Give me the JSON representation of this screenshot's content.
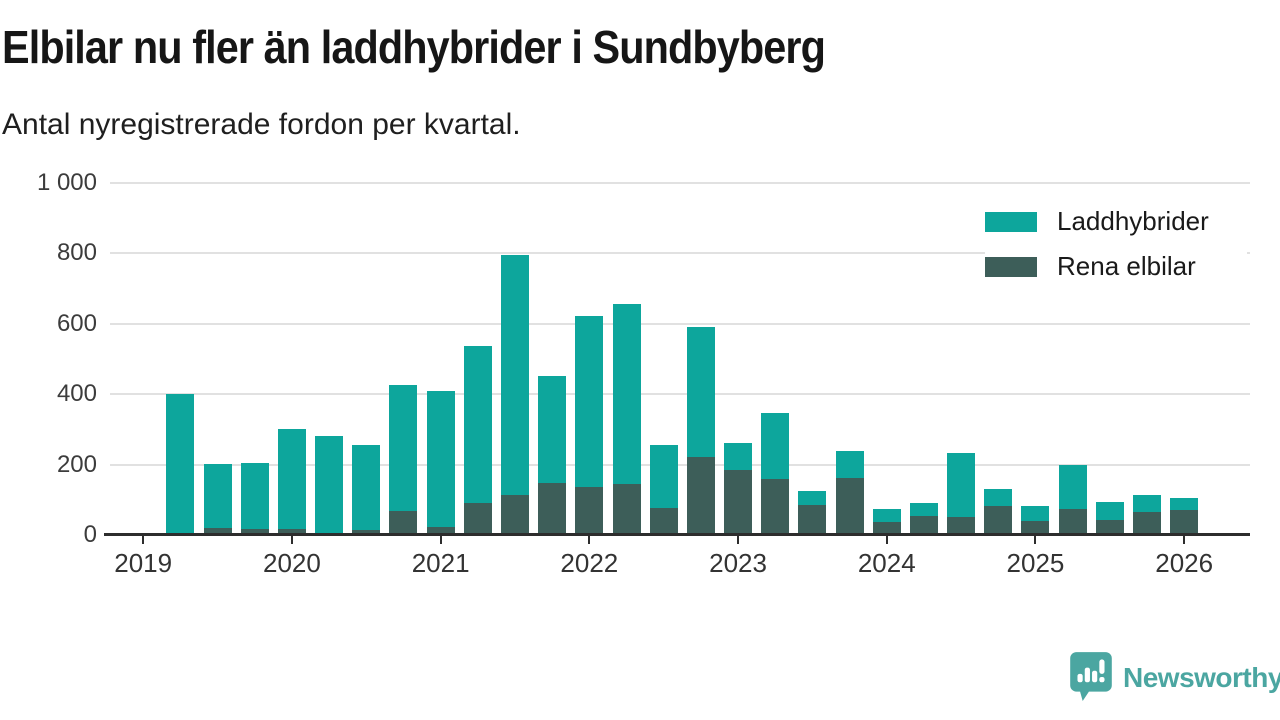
{
  "header": {
    "title": "Elbilar nu fler än laddhybrider i Sundbyberg",
    "subtitle": "Antal nyregistrerade fordon per kvartal."
  },
  "chart_data": {
    "type": "bar",
    "stacked": true,
    "title": "Elbilar nu fler än laddhybrider i Sundbyberg",
    "subtitle": "Antal nyregistrerade fordon per kvartal.",
    "categories": [
      "2019 K2",
      "2019 K3",
      "2019 K4",
      "2020 K1",
      "2020 K2",
      "2020 K3",
      "2020 K4",
      "2021 K1",
      "2021 K2",
      "2021 K3",
      "2021 K4",
      "2022 K1",
      "2022 K2",
      "2022 K3",
      "2022 K4",
      "2023 K1",
      "2023 K2",
      "2023 K3",
      "2023 K4",
      "2024 K1",
      "2024 K2",
      "2024 K3",
      "2024 K4",
      "2025 K1",
      "2025 K2",
      "2025 K3",
      "2025 K4",
      "2026 K1"
    ],
    "series": [
      {
        "name": "Laddhybrider",
        "color": "#0da69c",
        "values": [
          398,
          182,
          189,
          282,
          275,
          244,
          357,
          388,
          445,
          682,
          304,
          485,
          511,
          178,
          370,
          76,
          189,
          41,
          76,
          37,
          38,
          183,
          48,
          43,
          127,
          52,
          48,
          36
        ]
      },
      {
        "name": "Rena elbilar",
        "color": "#3d5e59",
        "values": [
          2,
          20,
          16,
          18,
          6,
          13,
          69,
          22,
          91,
          114,
          148,
          137,
          145,
          77,
          222,
          184,
          159,
          85,
          163,
          36,
          54,
          50,
          82,
          39,
          73,
          43,
          66,
          70
        ]
      }
    ],
    "stack_order_bottom_to_top": [
      "Rena elbilar",
      "Laddhybrider"
    ],
    "x_tick_labels": [
      "2019",
      "2020",
      "2021",
      "2022",
      "2023",
      "2024",
      "2025",
      "2026"
    ],
    "y_ticks": [
      0,
      200,
      400,
      600,
      800,
      1000
    ],
    "y_tick_labels": [
      "0",
      "200",
      "400",
      "600",
      "800",
      "1 000"
    ],
    "ylim": [
      0,
      1000
    ],
    "grid": "horizontal",
    "legend_position": "top-right"
  },
  "footer": {
    "brand": "Newsworthy",
    "brand_color": "#4ba6a1"
  }
}
